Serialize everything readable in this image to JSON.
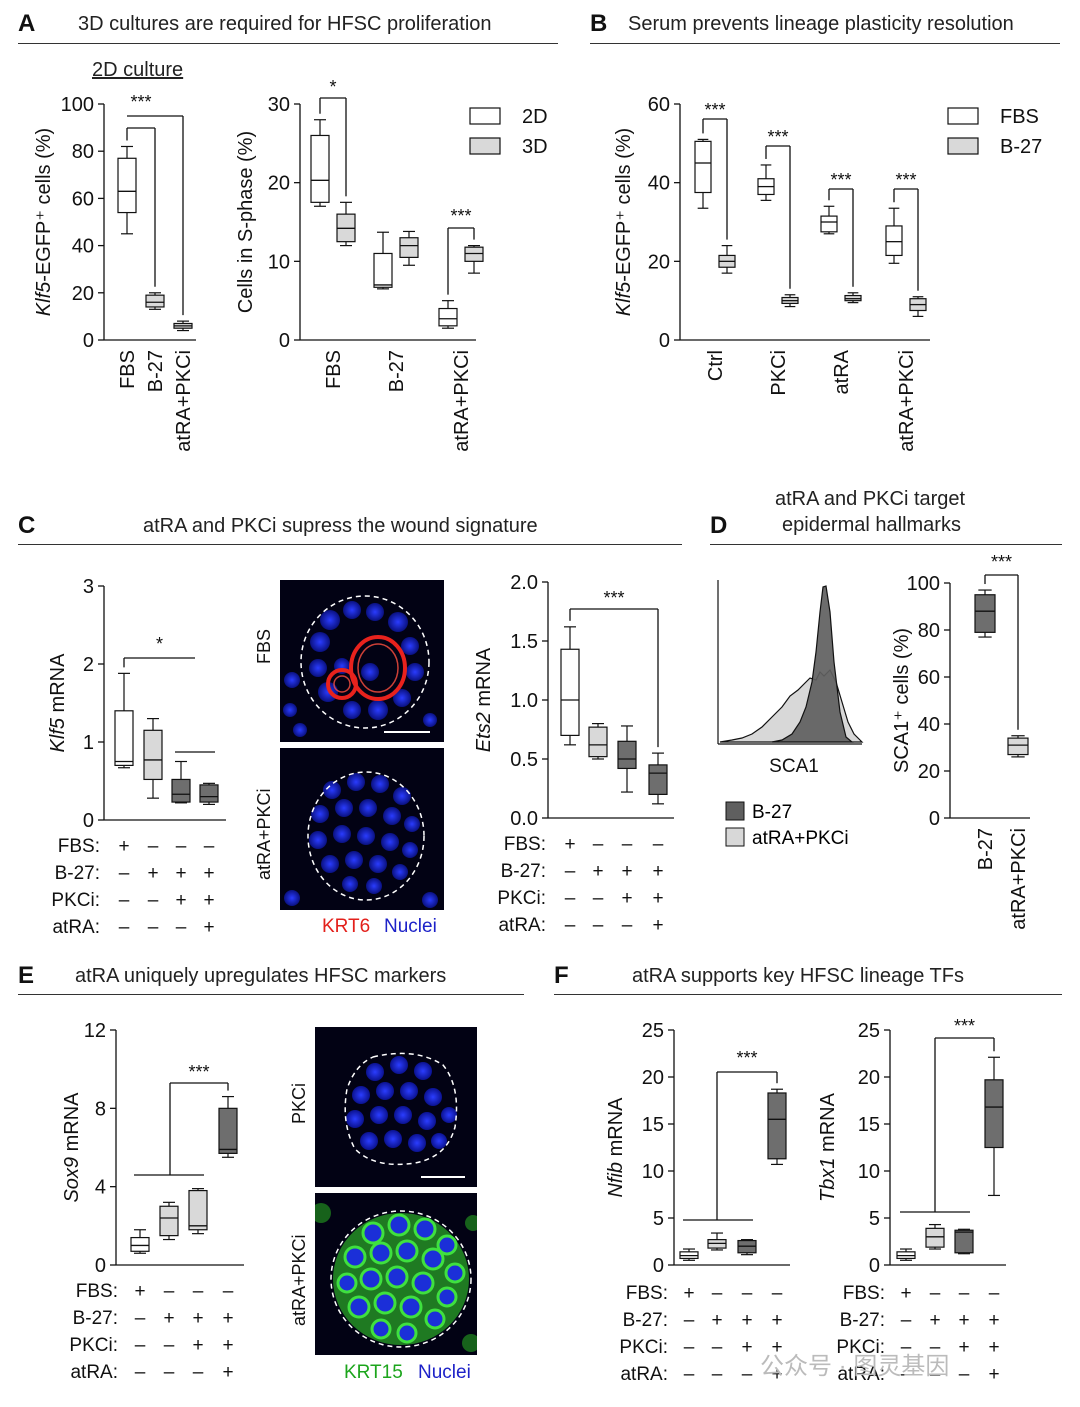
{
  "panels": {
    "A": {
      "letter": "A",
      "title": "3D cultures are required for HFSC proliferation",
      "subtitle": "2D culture"
    },
    "B": {
      "letter": "B",
      "title": "Serum prevents lineage plasticity resolution"
    },
    "C": {
      "letter": "C",
      "title": "atRA and PKCi supress the wound signature"
    },
    "D": {
      "letter": "D",
      "title_line1": "atRA and PKCi target",
      "title_line2": "epidermal hallmarks"
    },
    "E": {
      "letter": "E",
      "title": "atRA uniquely upregulates HFSC markers"
    },
    "F": {
      "letter": "F",
      "title": "atRA supports key HFSC lineage TFs"
    }
  },
  "micrographs": {
    "C_top_label": "FBS",
    "C_bottom_label": "atRA+PKCi",
    "C_caption_a": "KRT6",
    "C_caption_b": "Nuclei",
    "E_top_label": "PKCi",
    "E_bottom_label": "atRA+PKCi",
    "E_caption_a": "KRT15",
    "E_caption_b": "Nuclei"
  },
  "flow": {
    "xlabel": "SCA1",
    "legend": [
      "B-27",
      "atRA+PKCi"
    ]
  },
  "condition_table": {
    "rows": [
      "FBS:",
      "B-27:",
      "PKCi:",
      "atRA:"
    ],
    "values": [
      [
        "+",
        "–",
        "–",
        "–"
      ],
      [
        "–",
        "+",
        "+",
        "+"
      ],
      [
        "–",
        "–",
        "+",
        "+"
      ],
      [
        "–",
        "–",
        "–",
        "+"
      ]
    ]
  },
  "watermark": "公众号 · 图灵基因",
  "colors": {
    "white": "#ffffff",
    "light": "#d9d9d9",
    "dark": "#6e6e6e"
  },
  "chart_data": [
    {
      "id": "A1",
      "type": "box",
      "ylabel": "Klf5-EGFP⁺ cells (%)",
      "ylim": [
        0,
        100
      ],
      "yticks": [
        0,
        20,
        40,
        60,
        80,
        100
      ],
      "categories": [
        "FBS",
        "B-27",
        "atRA+PKCi"
      ],
      "boxes": [
        {
          "min": 45,
          "q1": 54,
          "med": 63,
          "q3": 77,
          "max": 82,
          "fill": "white"
        },
        {
          "min": 13,
          "q1": 14,
          "med": 16,
          "q3": 19,
          "max": 20,
          "fill": "light"
        },
        {
          "min": 4,
          "q1": 5,
          "med": 6,
          "q3": 7,
          "max": 8,
          "fill": "light"
        }
      ],
      "sig": [
        {
          "label": "***"
        }
      ]
    },
    {
      "id": "A2",
      "type": "box",
      "ylabel": "Cells in S-phase (%)",
      "ylim": [
        0,
        30
      ],
      "yticks": [
        0,
        10,
        20,
        30
      ],
      "categories": [
        "FBS",
        "B-27",
        "atRA+PKCi"
      ],
      "legend": [
        "2D",
        "3D"
      ],
      "boxes": [
        {
          "group": 0,
          "min": 17,
          "q1": 17.5,
          "med": 20.3,
          "q3": 26,
          "max": 28,
          "fill": "white"
        },
        {
          "group": 0,
          "min": 12,
          "q1": 12.5,
          "med": 14.2,
          "q3": 16,
          "max": 17.5,
          "fill": "light"
        },
        {
          "group": 1,
          "min": 6.5,
          "q1": 6.7,
          "med": 7,
          "q3": 11,
          "max": 13.7,
          "fill": "white"
        },
        {
          "group": 1,
          "min": 9.5,
          "q1": 10.5,
          "med": 12,
          "q3": 13,
          "max": 13.8,
          "fill": "light"
        },
        {
          "group": 2,
          "min": 1.5,
          "q1": 1.8,
          "med": 2.7,
          "q3": 4,
          "max": 5,
          "fill": "white"
        },
        {
          "group": 2,
          "min": 8.5,
          "q1": 10,
          "med": 11,
          "q3": 11.8,
          "max": 12,
          "fill": "light"
        }
      ],
      "sig": [
        {
          "label": "*"
        },
        {
          "label": "***"
        }
      ]
    },
    {
      "id": "B",
      "type": "box",
      "ylabel": "Klf5-EGFP⁺ cells (%)",
      "ylim": [
        0,
        60
      ],
      "yticks": [
        0,
        20,
        40,
        60
      ],
      "categories": [
        "Ctrl",
        "PKCi",
        "atRA",
        "atRA+PKCi"
      ],
      "legend": [
        "FBS",
        "B-27"
      ],
      "boxes": [
        {
          "group": 0,
          "min": 33.5,
          "q1": 37.5,
          "med": 45,
          "q3": 50.5,
          "max": 51,
          "fill": "white"
        },
        {
          "group": 0,
          "min": 17,
          "q1": 18.5,
          "med": 20,
          "q3": 21.5,
          "max": 24,
          "fill": "light"
        },
        {
          "group": 1,
          "min": 35.5,
          "q1": 37,
          "med": 39,
          "q3": 41,
          "max": 44.5,
          "fill": "white"
        },
        {
          "group": 1,
          "min": 8.5,
          "q1": 9.3,
          "med": 10,
          "q3": 10.8,
          "max": 11.5,
          "fill": "light"
        },
        {
          "group": 2,
          "min": 27,
          "q1": 27.5,
          "med": 30,
          "q3": 31.5,
          "max": 34,
          "fill": "white"
        },
        {
          "group": 2,
          "min": 9.5,
          "q1": 10,
          "med": 10.5,
          "q3": 11.3,
          "max": 12,
          "fill": "light"
        },
        {
          "group": 3,
          "min": 19.5,
          "q1": 21.5,
          "med": 25,
          "q3": 29,
          "max": 33.5,
          "fill": "white"
        },
        {
          "group": 3,
          "min": 6,
          "q1": 7.5,
          "med": 9,
          "q3": 10.5,
          "max": 11,
          "fill": "light"
        }
      ],
      "sig": [
        {
          "label": "***"
        },
        {
          "label": "***"
        },
        {
          "label": "***"
        },
        {
          "label": "***"
        }
      ]
    },
    {
      "id": "C1",
      "type": "box",
      "ylabel": "Klf5 mRNA",
      "ylim": [
        0,
        3
      ],
      "yticks": [
        0,
        1,
        2,
        3
      ],
      "boxes": [
        {
          "min": 0.67,
          "q1": 0.7,
          "med": 0.75,
          "q3": 1.4,
          "max": 1.88,
          "fill": "white"
        },
        {
          "min": 0.28,
          "q1": 0.52,
          "med": 0.77,
          "q3": 1.15,
          "max": 1.3,
          "fill": "light"
        },
        {
          "min": 0.22,
          "q1": 0.23,
          "med": 0.33,
          "q3": 0.52,
          "max": 0.75,
          "fill": "dark"
        },
        {
          "min": 0.2,
          "q1": 0.23,
          "med": 0.3,
          "q3": 0.45,
          "max": 0.47,
          "fill": "dark"
        }
      ],
      "sig": [
        {
          "label": "*"
        }
      ]
    },
    {
      "id": "C2",
      "type": "box",
      "ylabel": "Ets2 mRNA",
      "ylim": [
        0,
        2
      ],
      "yticks": [
        "0.0",
        "0.5",
        "1.0",
        "1.5",
        "2.0"
      ],
      "boxes": [
        {
          "min": 0.62,
          "q1": 0.7,
          "med": 1.0,
          "q3": 1.43,
          "max": 1.62,
          "fill": "white"
        },
        {
          "min": 0.5,
          "q1": 0.52,
          "med": 0.62,
          "q3": 0.77,
          "max": 0.8,
          "fill": "light"
        },
        {
          "min": 0.22,
          "q1": 0.42,
          "med": 0.5,
          "q3": 0.65,
          "max": 0.78,
          "fill": "dark"
        },
        {
          "min": 0.12,
          "q1": 0.2,
          "med": 0.38,
          "q3": 0.45,
          "max": 0.55,
          "fill": "dark"
        }
      ],
      "sig": [
        {
          "label": "***"
        }
      ]
    },
    {
      "id": "D",
      "type": "box",
      "ylabel": "SCA1⁺ cells (%)",
      "ylim": [
        0,
        100
      ],
      "yticks": [
        0,
        20,
        40,
        60,
        80,
        100
      ],
      "categories": [
        "B-27",
        "atRA+PKCi"
      ],
      "boxes": [
        {
          "min": 77,
          "q1": 79,
          "med": 88,
          "q3": 95,
          "max": 97,
          "fill": "dark"
        },
        {
          "min": 26,
          "q1": 27,
          "med": 31,
          "q3": 34,
          "max": 35,
          "fill": "light"
        }
      ],
      "sig": [
        {
          "label": "***"
        }
      ]
    },
    {
      "id": "E",
      "type": "box",
      "ylabel": "Sox9 mRNA",
      "ylim": [
        0,
        12
      ],
      "yticks": [
        0,
        4,
        8,
        12
      ],
      "boxes": [
        {
          "min": 0.6,
          "q1": 0.7,
          "med": 1.0,
          "q3": 1.4,
          "max": 1.8,
          "fill": "white"
        },
        {
          "min": 1.3,
          "q1": 1.5,
          "med": 2.4,
          "q3": 3.0,
          "max": 3.2,
          "fill": "light"
        },
        {
          "min": 1.6,
          "q1": 1.8,
          "med": 2.0,
          "q3": 3.8,
          "max": 3.9,
          "fill": "light"
        },
        {
          "min": 5.5,
          "q1": 5.7,
          "med": 5.9,
          "q3": 8.0,
          "max": 8.6,
          "fill": "dark"
        }
      ],
      "sig": [
        {
          "label": "***"
        }
      ]
    },
    {
      "id": "F1",
      "type": "box",
      "ylabel": "Nfib mRNA",
      "ylim": [
        0,
        25
      ],
      "yticks": [
        0,
        5,
        10,
        15,
        20,
        25
      ],
      "boxes": [
        {
          "min": 0.5,
          "q1": 0.7,
          "med": 1.0,
          "q3": 1.4,
          "max": 1.7,
          "fill": "white"
        },
        {
          "min": 1.6,
          "q1": 1.8,
          "med": 2.3,
          "q3": 2.7,
          "max": 3.4,
          "fill": "light"
        },
        {
          "min": 1.1,
          "q1": 1.3,
          "med": 2.0,
          "q3": 2.6,
          "max": 2.7,
          "fill": "dark"
        },
        {
          "min": 10.7,
          "q1": 11.3,
          "med": 15.5,
          "q3": 18.3,
          "max": 18.7,
          "fill": "dark"
        }
      ],
      "sig": [
        {
          "label": "***"
        }
      ]
    },
    {
      "id": "F2",
      "type": "box",
      "ylabel": "Tbx1 mRNA",
      "ylim": [
        0,
        25
      ],
      "yticks": [
        0,
        5,
        10,
        15,
        20,
        25
      ],
      "boxes": [
        {
          "min": 0.5,
          "q1": 0.7,
          "med": 1.0,
          "q3": 1.4,
          "max": 1.7,
          "fill": "white"
        },
        {
          "min": 1.7,
          "q1": 1.9,
          "med": 3.0,
          "q3": 3.9,
          "max": 4.3,
          "fill": "light"
        },
        {
          "min": 1.2,
          "q1": 1.3,
          "med": 3.5,
          "q3": 3.7,
          "max": 3.8,
          "fill": "dark"
        },
        {
          "min": 7.4,
          "q1": 12.5,
          "med": 16.8,
          "q3": 19.7,
          "max": 22.1,
          "fill": "dark"
        }
      ],
      "sig": [
        {
          "label": "***"
        }
      ]
    }
  ]
}
